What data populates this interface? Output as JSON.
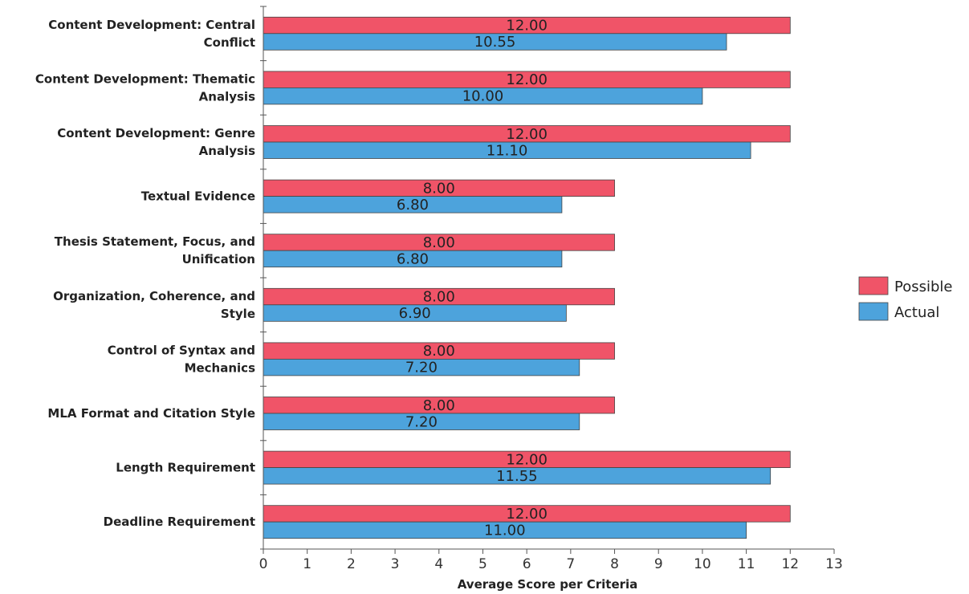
{
  "chart_data": {
    "type": "bar",
    "orientation": "horizontal",
    "title": "",
    "xlabel": "Average Score per Criteria",
    "ylabel": "",
    "xlim": [
      0,
      13
    ],
    "xticks": [
      "0",
      "1",
      "2",
      "3",
      "4",
      "5",
      "6",
      "7",
      "8",
      "9",
      "10",
      "11",
      "12",
      "13"
    ],
    "grid": false,
    "legend_position": "right",
    "categories": [
      [
        "Content Development: Central",
        "Conflict"
      ],
      [
        "Content Development: Thematic",
        "Analysis"
      ],
      [
        "Content Development: Genre",
        "Analysis"
      ],
      [
        "Textual Evidence"
      ],
      [
        "Thesis Statement, Focus, and",
        "Unification"
      ],
      [
        "Organization, Coherence, and",
        "Style"
      ],
      [
        "Control of Syntax and",
        "Mechanics"
      ],
      [
        "MLA Format and Citation Style"
      ],
      [
        "Length Requirement"
      ],
      [
        "Deadline Requirement"
      ]
    ],
    "series": [
      {
        "name": "Possible",
        "color": "#f05468",
        "values": [
          12,
          12,
          12,
          8,
          8,
          8,
          8,
          8,
          12,
          12
        ],
        "labels": [
          "12.00",
          "12.00",
          "12.00",
          "8.00",
          "8.00",
          "8.00",
          "8.00",
          "8.00",
          "12.00",
          "12.00"
        ]
      },
      {
        "name": "Actual",
        "color": "#4da3dc",
        "values": [
          10.55,
          10.0,
          11.1,
          6.8,
          6.8,
          6.9,
          7.2,
          7.2,
          11.55,
          11.0
        ],
        "labels": [
          "10.55",
          "10.00",
          "11.10",
          "6.80",
          "6.80",
          "6.90",
          "7.20",
          "7.20",
          "11.55",
          "11.00"
        ]
      }
    ]
  }
}
